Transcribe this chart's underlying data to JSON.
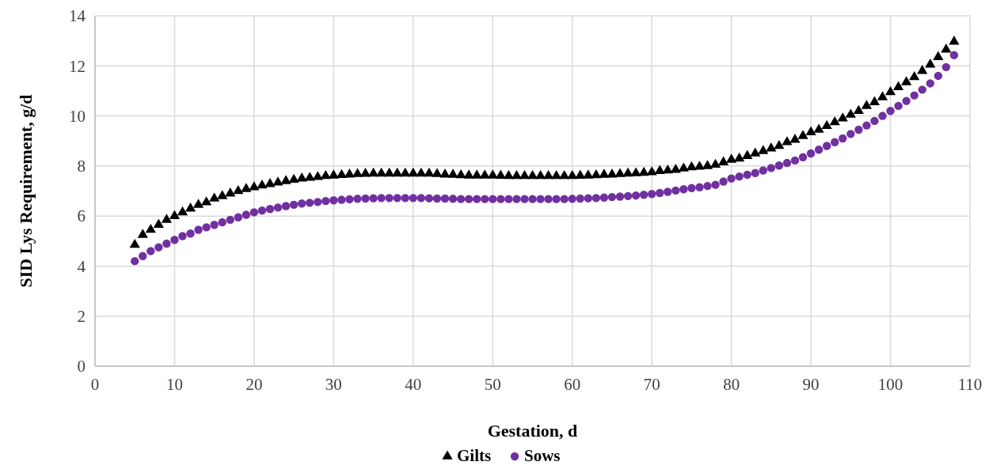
{
  "chart_data": {
    "type": "scatter",
    "xlabel": "Gestation, d",
    "ylabel": "SID Lys Requirement, g/d",
    "xlim": [
      0,
      110
    ],
    "xticks": [
      0,
      10,
      20,
      30,
      40,
      50,
      60,
      70,
      80,
      90,
      100,
      110
    ],
    "ylim": [
      0,
      14
    ],
    "yticks": [
      0,
      2,
      4,
      6,
      8,
      10,
      12,
      14
    ],
    "grid": true,
    "legend": "bottom",
    "x": [
      5,
      6,
      7,
      8,
      9,
      10,
      11,
      12,
      13,
      14,
      15,
      16,
      17,
      18,
      19,
      20,
      21,
      22,
      23,
      24,
      25,
      26,
      27,
      28,
      29,
      30,
      31,
      32,
      33,
      34,
      35,
      36,
      37,
      38,
      39,
      40,
      41,
      42,
      43,
      44,
      45,
      46,
      47,
      48,
      49,
      50,
      51,
      52,
      53,
      54,
      55,
      56,
      57,
      58,
      59,
      60,
      61,
      62,
      63,
      64,
      65,
      66,
      67,
      68,
      69,
      70,
      71,
      72,
      73,
      74,
      75,
      76,
      77,
      78,
      79,
      80,
      81,
      82,
      83,
      84,
      85,
      86,
      87,
      88,
      89,
      90,
      91,
      92,
      93,
      94,
      95,
      96,
      97,
      98,
      99,
      100,
      101,
      102,
      103,
      104,
      105,
      106,
      107,
      108
    ],
    "series": [
      {
        "name": "Gilts",
        "color": "#000000",
        "marker": "triangle",
        "values": [
          4.85,
          5.25,
          5.45,
          5.65,
          5.85,
          6.0,
          6.15,
          6.3,
          6.45,
          6.55,
          6.7,
          6.8,
          6.9,
          7.0,
          7.08,
          7.15,
          7.22,
          7.28,
          7.34,
          7.4,
          7.45,
          7.5,
          7.53,
          7.56,
          7.6,
          7.62,
          7.64,
          7.66,
          7.68,
          7.69,
          7.7,
          7.7,
          7.7,
          7.7,
          7.7,
          7.7,
          7.7,
          7.7,
          7.68,
          7.66,
          7.65,
          7.63,
          7.62,
          7.62,
          7.62,
          7.62,
          7.61,
          7.6,
          7.6,
          7.6,
          7.6,
          7.6,
          7.6,
          7.6,
          7.6,
          7.6,
          7.61,
          7.62,
          7.63,
          7.65,
          7.66,
          7.68,
          7.7,
          7.71,
          7.73,
          7.75,
          7.8,
          7.82,
          7.85,
          7.9,
          7.95,
          7.97,
          8.0,
          8.05,
          8.15,
          8.25,
          8.3,
          8.4,
          8.5,
          8.6,
          8.7,
          8.8,
          8.95,
          9.05,
          9.2,
          9.35,
          9.45,
          9.6,
          9.75,
          9.9,
          10.05,
          10.2,
          10.4,
          10.55,
          10.75,
          10.95,
          11.15,
          11.35,
          11.55,
          11.8,
          12.05,
          12.35,
          12.65,
          12.97
        ]
      },
      {
        "name": "Sows",
        "color": "#7030a0",
        "marker": "circle",
        "values": [
          4.2,
          4.4,
          4.6,
          4.75,
          4.9,
          5.05,
          5.2,
          5.3,
          5.45,
          5.55,
          5.65,
          5.75,
          5.85,
          5.95,
          6.05,
          6.15,
          6.22,
          6.28,
          6.34,
          6.4,
          6.45,
          6.5,
          6.53,
          6.56,
          6.6,
          6.63,
          6.65,
          6.67,
          6.69,
          6.7,
          6.71,
          6.72,
          6.72,
          6.72,
          6.72,
          6.72,
          6.72,
          6.71,
          6.7,
          6.7,
          6.69,
          6.68,
          6.68,
          6.68,
          6.68,
          6.68,
          6.68,
          6.68,
          6.68,
          6.68,
          6.68,
          6.68,
          6.68,
          6.68,
          6.68,
          6.69,
          6.7,
          6.71,
          6.72,
          6.74,
          6.76,
          6.78,
          6.8,
          6.82,
          6.85,
          6.88,
          6.92,
          6.97,
          7.02,
          7.07,
          7.12,
          7.15,
          7.2,
          7.25,
          7.38,
          7.5,
          7.58,
          7.65,
          7.72,
          7.82,
          7.92,
          8.02,
          8.12,
          8.22,
          8.35,
          8.5,
          8.65,
          8.8,
          8.95,
          9.1,
          9.28,
          9.45,
          9.62,
          9.8,
          10.0,
          10.2,
          10.4,
          10.6,
          10.82,
          11.05,
          11.3,
          11.6,
          11.95,
          12.43
        ]
      }
    ]
  }
}
